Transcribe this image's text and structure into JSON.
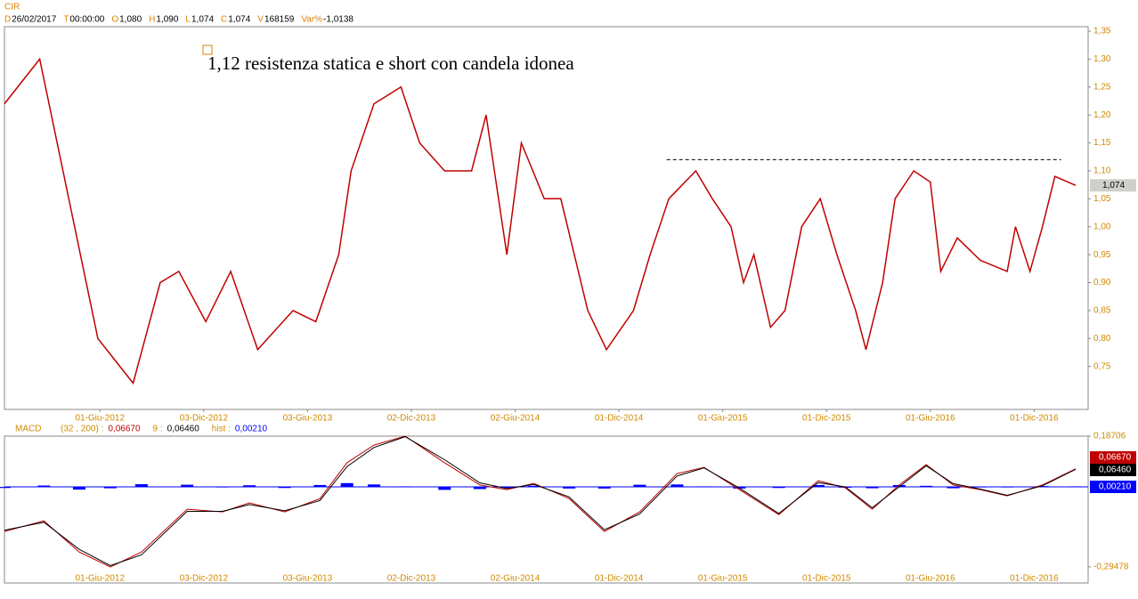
{
  "header": {
    "symbol": "CIR",
    "fields": [
      {
        "key": "D",
        "value": "26/02/2017"
      },
      {
        "key": "T",
        "value": "00:00:00"
      },
      {
        "key": "O",
        "value": "1,080"
      },
      {
        "key": "H",
        "value": "1,090"
      },
      {
        "key": "L",
        "value": "1,074"
      },
      {
        "key": "C",
        "value": "1,074"
      },
      {
        "key": "V",
        "value": "168159"
      },
      {
        "key": "Var%",
        "value": "-1,0138"
      }
    ]
  },
  "chart_data": [
    {
      "type": "line",
      "annotation": "1,12 resistenza statica e short con candela idonea",
      "x": [
        2011.96,
        2012.13,
        2012.41,
        2012.58,
        2012.71,
        2012.8,
        2012.93,
        2013.05,
        2013.18,
        2013.35,
        2013.46,
        2013.57,
        2013.63,
        2013.74,
        2013.87,
        2013.96,
        2014.08,
        2014.21,
        2014.28,
        2014.38,
        2014.45,
        2014.56,
        2014.64,
        2014.77,
        2014.86,
        2014.99,
        2015.07,
        2015.16,
        2015.29,
        2015.37,
        2015.46,
        2015.52,
        2015.57,
        2015.65,
        2015.72,
        2015.8,
        2015.89,
        2015.97,
        2016.06,
        2016.11,
        2016.19,
        2016.25,
        2016.34,
        2016.42,
        2016.47,
        2016.55,
        2016.66,
        2016.79,
        2016.83,
        2016.9,
        2016.96,
        2017.02,
        2017.12
      ],
      "series": [
        {
          "color": "#c00000",
          "values": [
            1.22,
            1.3,
            0.8,
            0.72,
            0.9,
            0.92,
            0.83,
            0.92,
            0.78,
            0.85,
            0.83,
            0.95,
            1.1,
            1.22,
            1.25,
            1.15,
            1.1,
            1.1,
            1.2,
            0.95,
            1.15,
            1.05,
            1.05,
            0.85,
            0.78,
            0.85,
            0.95,
            1.05,
            1.1,
            1.05,
            1.0,
            0.9,
            0.95,
            0.82,
            0.85,
            1.0,
            1.05,
            0.95,
            0.85,
            0.78,
            0.9,
            1.05,
            1.1,
            1.08,
            0.92,
            0.98,
            0.94,
            0.92,
            1.0,
            0.92,
            1.0,
            1.09,
            1.074
          ]
        }
      ],
      "last_price": {
        "value": 1.074,
        "label": "1,074"
      },
      "resistance": {
        "value": 1.12,
        "x": [
          2015.15,
          2017.05
        ]
      },
      "xlim": [
        2011.96,
        2017.18
      ],
      "ylim": [
        0.673,
        1.358
      ],
      "xticks": [
        {
          "value": 2012.42,
          "label": "01-Giu-2012"
        },
        {
          "value": 2012.92,
          "label": "03-Dic-2012"
        },
        {
          "value": 2013.42,
          "label": "03-Giu-2013"
        },
        {
          "value": 2013.92,
          "label": "02-Dic-2013"
        },
        {
          "value": 2014.42,
          "label": "02-Giu-2014"
        },
        {
          "value": 2014.92,
          "label": "01-Dic-2014"
        },
        {
          "value": 2015.42,
          "label": "01-Giu-2015"
        },
        {
          "value": 2015.92,
          "label": "01-Dic-2015"
        },
        {
          "value": 2016.42,
          "label": "01-Giu-2016"
        },
        {
          "value": 2016.92,
          "label": "01-Dic-2016"
        }
      ],
      "yticks": [
        {
          "value": 0.75,
          "label": "0,75"
        },
        {
          "value": 0.8,
          "label": "0,80"
        },
        {
          "value": 0.85,
          "label": "0,85"
        },
        {
          "value": 0.9,
          "label": "0,90"
        },
        {
          "value": 0.95,
          "label": "0,95"
        },
        {
          "value": 1.0,
          "label": "1,00"
        },
        {
          "value": 1.05,
          "label": "1,05"
        },
        {
          "value": 1.1,
          "label": "1,10"
        },
        {
          "value": 1.15,
          "label": "1,15"
        },
        {
          "value": 1.2,
          "label": "1,20"
        },
        {
          "value": 1.25,
          "label": "1,25"
        },
        {
          "value": 1.3,
          "label": "1,30"
        },
        {
          "value": 1.35,
          "label": "1,35"
        }
      ]
    },
    {
      "type": "macd",
      "title": "MACD",
      "x": [
        2011.96,
        2012.15,
        2012.32,
        2012.47,
        2012.62,
        2012.84,
        2013.01,
        2013.14,
        2013.31,
        2013.48,
        2013.61,
        2013.74,
        2013.89,
        2014.08,
        2014.25,
        2014.38,
        2014.51,
        2014.68,
        2014.85,
        2015.02,
        2015.2,
        2015.33,
        2015.5,
        2015.69,
        2015.88,
        2016.01,
        2016.14,
        2016.27,
        2016.4,
        2016.53,
        2016.66,
        2016.79,
        2016.96,
        2017.12
      ],
      "series": [
        {
          "name": "(32 , 200) :",
          "color": "#c00000",
          "last": {
            "value": 0.0667,
            "label": "0,06670"
          },
          "values": [
            -0.164,
            -0.125,
            -0.24,
            -0.295,
            -0.24,
            -0.082,
            -0.092,
            -0.059,
            -0.092,
            -0.043,
            0.089,
            0.154,
            0.187,
            0.089,
            0.007,
            -0.01,
            0.013,
            -0.043,
            -0.164,
            -0.092,
            0.049,
            0.072,
            -0.01,
            -0.102,
            0.023,
            -0.003,
            -0.082,
            0.007,
            0.082,
            0.007,
            -0.01,
            -0.033,
            0.007,
            0.0667
          ]
        },
        {
          "name": "9 :",
          "color": "#000000",
          "last": {
            "value": 0.0646,
            "label": "0,06460"
          },
          "values": [
            -0.16,
            -0.13,
            -0.23,
            -0.29,
            -0.25,
            -0.09,
            -0.09,
            -0.065,
            -0.088,
            -0.05,
            0.075,
            0.145,
            0.185,
            0.1,
            0.015,
            -0.006,
            0.009,
            -0.037,
            -0.158,
            -0.1,
            0.04,
            0.07,
            -0.004,
            -0.098,
            0.016,
            0.0,
            -0.077,
            0.0,
            0.078,
            0.012,
            -0.008,
            -0.031,
            0.004,
            0.0646
          ]
        },
        {
          "name": "hist :",
          "color": "#0000ff",
          "last": {
            "value": 0.0021,
            "label": "0,00210"
          },
          "values": [
            -0.004,
            0.005,
            -0.01,
            -0.005,
            0.01,
            0.008,
            -0.002,
            0.006,
            -0.004,
            0.007,
            0.014,
            0.009,
            0.002,
            -0.011,
            -0.008,
            -0.004,
            0.004,
            -0.006,
            -0.006,
            0.008,
            0.009,
            0.002,
            -0.006,
            -0.004,
            0.007,
            -0.003,
            -0.005,
            0.007,
            0.004,
            -0.005,
            -0.002,
            -0.002,
            0.003,
            0.0021
          ]
        }
      ],
      "xlim": [
        2011.96,
        2017.18
      ],
      "ylim": [
        -0.354,
        0.18706
      ],
      "yticks": [
        {
          "value": 0.18706,
          "label": "0,18706"
        },
        {
          "value": -0.29478,
          "label": "-0,29478"
        }
      ]
    }
  ]
}
